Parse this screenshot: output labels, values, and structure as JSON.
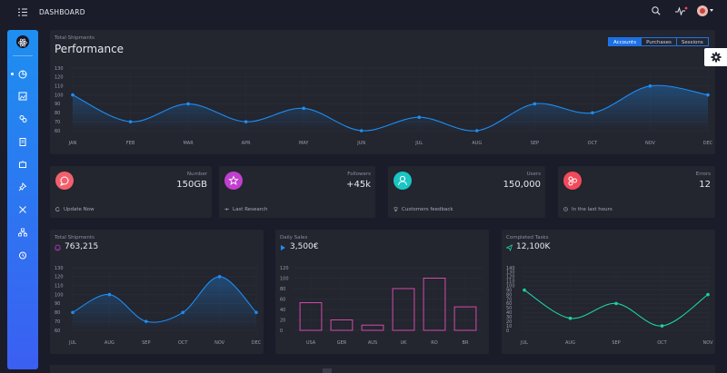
{
  "header": {
    "title": "DASHBOARD",
    "icons": [
      "menu-icon",
      "search-icon",
      "activity-icon",
      "avatar"
    ]
  },
  "sidebar": {
    "items": [
      "pie-chart-icon",
      "image-icon",
      "users-icon",
      "clipboard-icon",
      "puzzle-icon",
      "pin-icon",
      "tools-icon",
      "org-chart-icon",
      "clock-icon"
    ]
  },
  "performance": {
    "subtitle": "Total Shipments",
    "title": "Performance",
    "tabs": [
      "Accounts",
      "Purchases",
      "Sessions"
    ],
    "active_tab": "Accounts"
  },
  "stats": [
    {
      "label": "Number",
      "value": "150GB",
      "footer": "Update Now",
      "color": "#f2606c",
      "icon": "chat-icon",
      "footer_icon": "refresh-icon"
    },
    {
      "label": "Followers",
      "value": "+45k",
      "footer": "Last Research",
      "color": "#c13fcf",
      "icon": "star-icon",
      "footer_icon": "slider-icon"
    },
    {
      "label": "Users",
      "value": "150,000",
      "footer": "Customers feedback",
      "color": "#19c6c3",
      "icon": "user-icon",
      "footer_icon": "trophy-icon"
    },
    {
      "label": "Errors",
      "value": "12",
      "footer": "In the last hours",
      "color": "#f24a5a",
      "icon": "molecule-icon",
      "footer_icon": "clock-icon"
    }
  ],
  "shipments": {
    "subtitle": "Total Shipments",
    "value": "763,215",
    "icon": "bell-icon",
    "icon_color": "#c13fcf"
  },
  "sales": {
    "subtitle": "Daily Sales",
    "value": "3,500€",
    "icon": "delivery-icon",
    "icon_color": "#1d8df3"
  },
  "tasks": {
    "subtitle": "Completed Tasks",
    "value": "12,100K",
    "icon": "send-icon",
    "icon_color": "#1dd1a1"
  },
  "chart_data": [
    {
      "type": "line",
      "title": "Performance",
      "categories": [
        "JAN",
        "FEB",
        "MAR",
        "APR",
        "MAY",
        "JUN",
        "JUL",
        "AUG",
        "SEP",
        "OCT",
        "NOV",
        "DEC"
      ],
      "values": [
        100,
        70,
        90,
        70,
        85,
        60,
        75,
        60,
        90,
        80,
        110,
        100
      ],
      "ylim": [
        60,
        130
      ],
      "yticks": [
        60,
        70,
        80,
        90,
        100,
        110,
        120,
        130
      ],
      "color": "#1d8df3"
    },
    {
      "type": "line",
      "title": "Total Shipments",
      "categories": [
        "JUL",
        "AUG",
        "SEP",
        "OCT",
        "NOV",
        "DEC"
      ],
      "values": [
        80,
        100,
        70,
        80,
        120,
        80
      ],
      "ylim": [
        60,
        130
      ],
      "yticks": [
        60,
        70,
        80,
        90,
        100,
        110,
        120,
        130
      ],
      "color": "#1d8df3"
    },
    {
      "type": "bar",
      "title": "Daily Sales",
      "categories": [
        "USA",
        "GER",
        "AUS",
        "UK",
        "RO",
        "BR"
      ],
      "values": [
        53,
        20,
        10,
        80,
        100,
        45
      ],
      "ylim": [
        0,
        120
      ],
      "yticks": [
        0,
        20,
        40,
        60,
        80,
        100,
        120
      ],
      "color": "#d24ca8"
    },
    {
      "type": "line",
      "title": "Completed Tasks",
      "categories": [
        "JUL",
        "AUG",
        "SEP",
        "OCT",
        "NOV"
      ],
      "values": [
        90,
        27,
        60,
        10,
        80
      ],
      "ylim": [
        0,
        140
      ],
      "yticks": [
        0,
        10,
        20,
        30,
        40,
        50,
        60,
        70,
        80,
        90,
        100,
        110,
        120,
        130,
        140
      ],
      "color": "#1dd1a1"
    }
  ]
}
